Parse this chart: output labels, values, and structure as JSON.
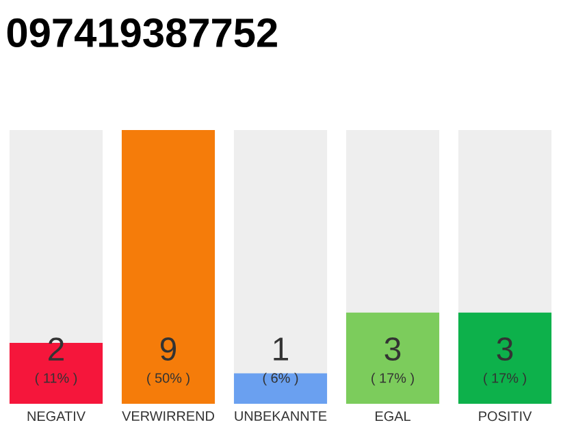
{
  "chart_data": {
    "type": "bar",
    "title": "097419387752",
    "categories": [
      "NEGATIV",
      "VERWIRREND",
      "UNBEKANNTE",
      "EGAL",
      "POSITIV"
    ],
    "values": [
      2,
      9,
      1,
      3,
      3
    ],
    "colors": [
      "#f5163b",
      "#f57c0a",
      "#6aa0f0",
      "#7ccc5c",
      "#0db14b"
    ],
    "ylim": [
      0,
      9
    ],
    "data_labels": true,
    "annotations": [
      "( 11% )",
      "( 50% )",
      "( 6% )",
      "( 17% )",
      "( 17% )"
    ]
  }
}
